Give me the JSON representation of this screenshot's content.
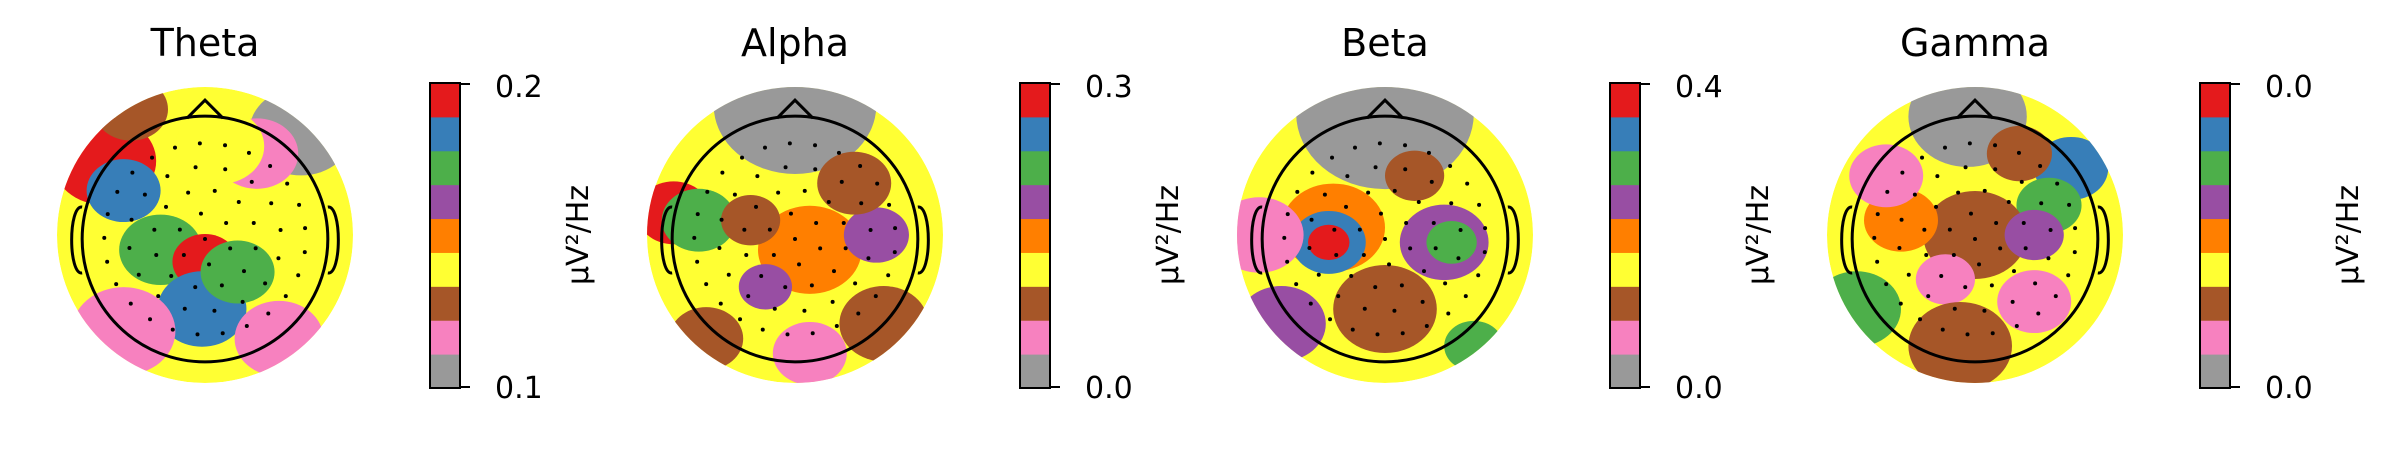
{
  "palette": [
    "#999999",
    "#f781bf",
    "#a65628",
    "#ffff33",
    "#ff7f00",
    "#984ea3",
    "#4daf4a",
    "#377eb8",
    "#e41a1c"
  ],
  "chart_data": [
    {
      "type": "heatmap",
      "title": "Theta",
      "colorbar_label": "µV²/Hz",
      "colorbar_ticks": [
        "0.2",
        "0.1"
      ],
      "vlim": [
        0.1,
        0.2
      ],
      "sensor_count": 60,
      "blobs": [
        {
          "x": -0.68,
          "y": -0.5,
          "r": 0.35,
          "level": 8
        },
        {
          "x": -0.55,
          "y": -0.3,
          "r": 0.25,
          "level": 7
        },
        {
          "x": -0.3,
          "y": 0.1,
          "r": 0.28,
          "level": 6
        },
        {
          "x": 0.0,
          "y": 0.18,
          "r": 0.22,
          "level": 8
        },
        {
          "x": -0.02,
          "y": 0.5,
          "r": 0.3,
          "level": 7
        },
        {
          "x": 0.22,
          "y": 0.25,
          "r": 0.25,
          "level": 6
        },
        {
          "x": -0.55,
          "y": 0.65,
          "r": 0.35,
          "level": 1
        },
        {
          "x": 0.65,
          "y": -0.7,
          "r": 0.35,
          "level": 0
        },
        {
          "x": 0.35,
          "y": -0.55,
          "r": 0.28,
          "level": 1
        },
        {
          "x": 0.5,
          "y": 0.7,
          "r": 0.3,
          "level": 1
        },
        {
          "x": 0.1,
          "y": -0.6,
          "r": 0.3,
          "level": 3
        },
        {
          "x": -0.5,
          "y": -0.85,
          "r": 0.25,
          "level": 2
        }
      ]
    },
    {
      "type": "heatmap",
      "title": "Alpha",
      "colorbar_label": "µV²/Hz",
      "colorbar_ticks": [
        "0.3",
        "0.0"
      ],
      "vlim": [
        0.0,
        0.3
      ],
      "sensor_count": 60,
      "blobs": [
        {
          "x": 0.0,
          "y": -0.88,
          "r": 0.55,
          "level": 0
        },
        {
          "x": -0.82,
          "y": -0.15,
          "r": 0.25,
          "level": 8
        },
        {
          "x": -0.65,
          "y": -0.1,
          "r": 0.25,
          "level": 6
        },
        {
          "x": 0.1,
          "y": 0.1,
          "r": 0.35,
          "level": 4
        },
        {
          "x": 0.55,
          "y": 0.0,
          "r": 0.22,
          "level": 5
        },
        {
          "x": -0.2,
          "y": 0.35,
          "r": 0.18,
          "level": 5
        },
        {
          "x": -0.3,
          "y": -0.1,
          "r": 0.2,
          "level": 2
        },
        {
          "x": 0.4,
          "y": -0.35,
          "r": 0.25,
          "level": 2
        },
        {
          "x": 0.1,
          "y": 0.8,
          "r": 0.25,
          "level": 1
        },
        {
          "x": -0.6,
          "y": 0.7,
          "r": 0.25,
          "level": 2
        },
        {
          "x": 0.6,
          "y": 0.6,
          "r": 0.3,
          "level": 2
        }
      ]
    },
    {
      "type": "heatmap",
      "title": "Beta",
      "colorbar_label": "µV²/Hz",
      "colorbar_ticks": [
        "0.4",
        "0.0"
      ],
      "vlim": [
        0.0,
        0.4
      ],
      "sensor_count": 60,
      "blobs": [
        {
          "x": 0.0,
          "y": -0.82,
          "r": 0.6,
          "level": 0
        },
        {
          "x": -0.35,
          "y": -0.05,
          "r": 0.35,
          "level": 4
        },
        {
          "x": -0.38,
          "y": 0.05,
          "r": 0.25,
          "level": 7
        },
        {
          "x": -0.38,
          "y": 0.05,
          "r": 0.14,
          "level": 8
        },
        {
          "x": 0.4,
          "y": 0.05,
          "r": 0.3,
          "level": 5
        },
        {
          "x": 0.45,
          "y": 0.05,
          "r": 0.17,
          "level": 6
        },
        {
          "x": -0.85,
          "y": 0.0,
          "r": 0.3,
          "level": 1
        },
        {
          "x": 0.6,
          "y": 0.75,
          "r": 0.2,
          "level": 6
        },
        {
          "x": -0.7,
          "y": 0.6,
          "r": 0.3,
          "level": 5
        },
        {
          "x": 0.0,
          "y": 0.5,
          "r": 0.35,
          "level": 2
        },
        {
          "x": 0.2,
          "y": -0.4,
          "r": 0.2,
          "level": 2
        }
      ]
    },
    {
      "type": "heatmap",
      "title": "Gamma",
      "colorbar_label": "µV²/Hz",
      "colorbar_ticks": [
        "0.0",
        "0.0"
      ],
      "vlim": [
        0.0,
        0.0
      ],
      "sensor_count": 60,
      "blobs": [
        {
          "x": -0.05,
          "y": -0.8,
          "r": 0.4,
          "level": 0
        },
        {
          "x": 0.65,
          "y": -0.45,
          "r": 0.25,
          "level": 7
        },
        {
          "x": 0.5,
          "y": -0.2,
          "r": 0.22,
          "level": 6
        },
        {
          "x": -0.8,
          "y": 0.5,
          "r": 0.3,
          "level": 6
        },
        {
          "x": 0.0,
          "y": 0.0,
          "r": 0.35,
          "level": 2
        },
        {
          "x": -0.5,
          "y": -0.1,
          "r": 0.25,
          "level": 4
        },
        {
          "x": 0.4,
          "y": 0.0,
          "r": 0.2,
          "level": 5
        },
        {
          "x": -0.2,
          "y": 0.3,
          "r": 0.2,
          "level": 1
        },
        {
          "x": 0.4,
          "y": 0.45,
          "r": 0.25,
          "level": 1
        },
        {
          "x": -0.6,
          "y": -0.4,
          "r": 0.25,
          "level": 1
        },
        {
          "x": -0.1,
          "y": 0.75,
          "r": 0.35,
          "level": 2
        },
        {
          "x": 0.3,
          "y": -0.55,
          "r": 0.22,
          "level": 2
        }
      ]
    }
  ]
}
